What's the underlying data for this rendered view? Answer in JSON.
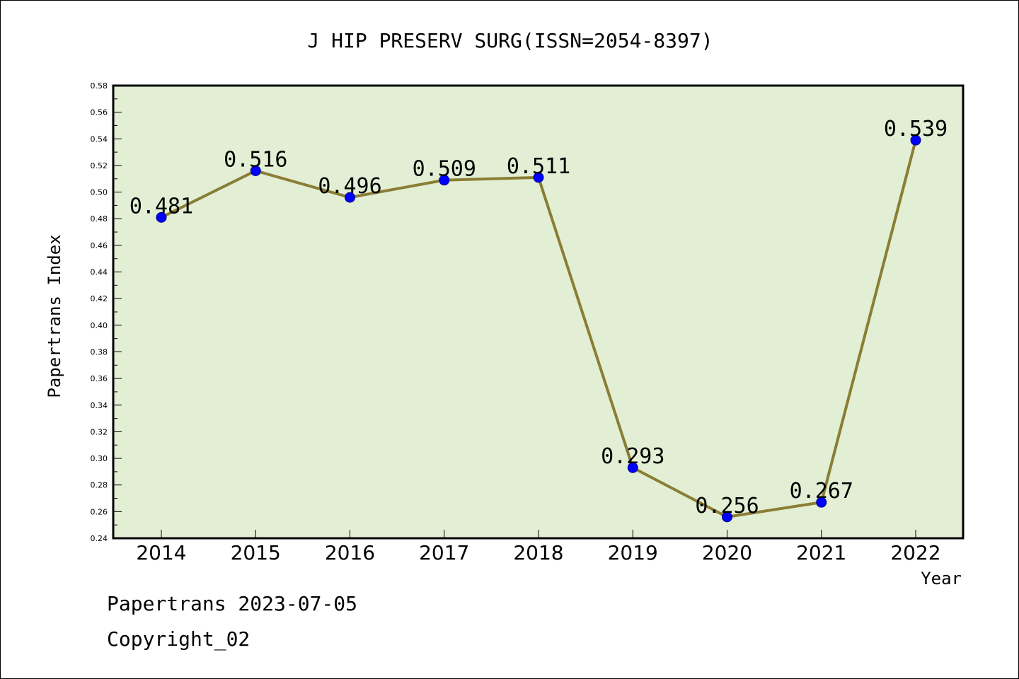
{
  "chart_data": {
    "type": "line",
    "title": "J HIP PRESERV SURG(ISSN=2054-8397)",
    "xlabel": "Year",
    "ylabel": "Papertrans Index",
    "categories": [
      "2014",
      "2015",
      "2016",
      "2017",
      "2018",
      "2019",
      "2020",
      "2021",
      "2022"
    ],
    "values": [
      0.481,
      0.516,
      0.496,
      0.509,
      0.511,
      0.293,
      0.256,
      0.267,
      0.539
    ],
    "data_labels": [
      "0.481",
      "0.516",
      "0.496",
      "0.509",
      "0.511",
      "0.293",
      "0.256",
      "0.267",
      "0.539"
    ],
    "ylim": [
      0.24,
      0.58
    ],
    "yticks": [
      "0.24",
      "0.26",
      "0.28",
      "0.30",
      "0.32",
      "0.34",
      "0.36",
      "0.38",
      "0.40",
      "0.42",
      "0.44",
      "0.46",
      "0.48",
      "0.50",
      "0.52",
      "0.54",
      "0.56",
      "0.58"
    ],
    "grid": false,
    "colors": {
      "plot_background": "#e2efd4",
      "line": "#8b7d35",
      "marker": "#0000ff"
    }
  },
  "footer": {
    "line1": "Papertrans 2023-07-05",
    "line2": "Copyright_02"
  }
}
